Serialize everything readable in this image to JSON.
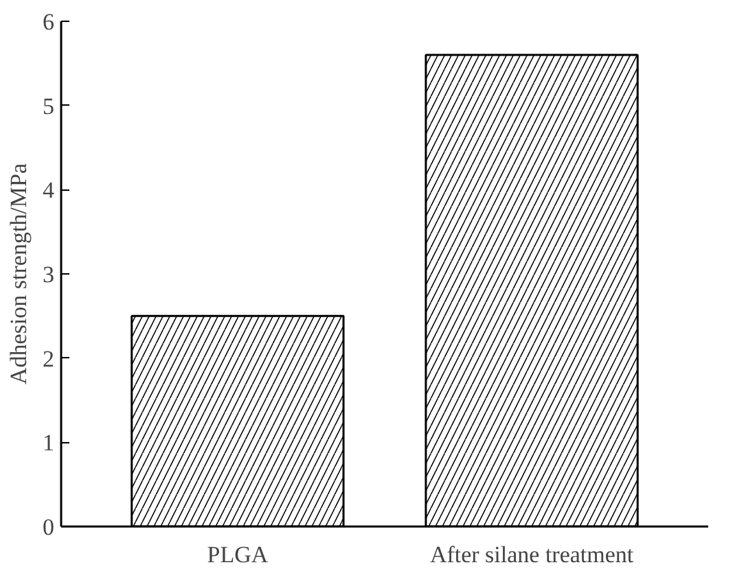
{
  "chart_data": {
    "type": "bar",
    "ylabel": "Adhesion strength/MPa",
    "categories": [
      "PLGA",
      "After silane treatment"
    ],
    "values": [
      2.5,
      5.6
    ],
    "color": "#000000",
    "ylim": [
      0,
      6
    ],
    "yticks": [
      0,
      1,
      2,
      3,
      4,
      5,
      6
    ],
    "grid": false
  }
}
